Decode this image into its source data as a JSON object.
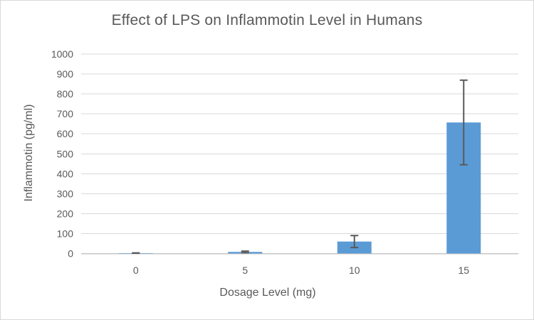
{
  "chart_data": {
    "type": "bar",
    "title": "Effect of LPS on Inflammotin Level in Humans",
    "xlabel": "Dosage Level (mg)",
    "ylabel": "Inflammotin (pg/ml)",
    "categories": [
      "0",
      "5",
      "10",
      "15"
    ],
    "series": [
      {
        "name": "Inflammotin",
        "values": [
          2,
          8,
          60,
          657
        ],
        "error_bars": [
          1,
          4,
          30,
          212
        ]
      }
    ],
    "ylim": [
      0,
      1000
    ],
    "ytick_step": 100,
    "ytick_labels": [
      "0",
      "100",
      "200",
      "300",
      "400",
      "500",
      "600",
      "700",
      "800",
      "900",
      "1000"
    ],
    "grid": true,
    "legend": "none",
    "bar_color": "#5B9BD5",
    "error_bar_color": "#595959",
    "gridline_color": "#D9D9D9",
    "axis_line_color": "#C6C6C6",
    "text_color": "#595959",
    "background_color": "#FFFFFF"
  }
}
